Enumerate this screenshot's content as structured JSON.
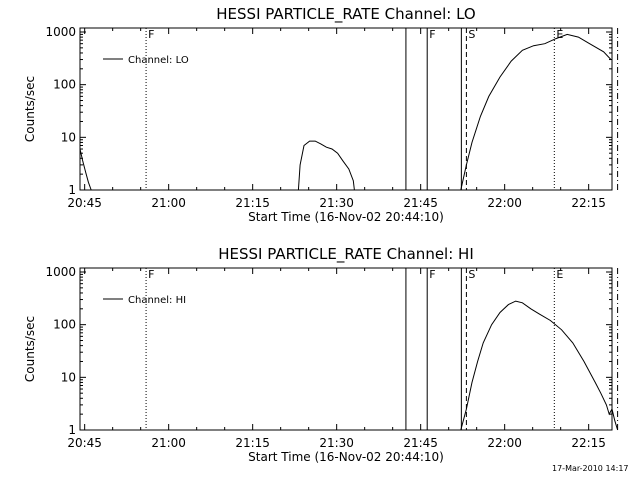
{
  "footer": {
    "timestamp": "17-Mar-2010 14:17"
  },
  "chart_data": [
    {
      "type": "line",
      "title": "HESSI PARTICLE_RATE Channel: LO",
      "xlabel": "Start Time (16-Nov-02 20:44:10)",
      "ylabel": "Counts/sec",
      "yscale": "log",
      "ylim": [
        1,
        1000
      ],
      "xlim_minutes": [
        0,
        95
      ],
      "x_ticks": [
        "20:45",
        "21:00",
        "21:15",
        "21:30",
        "21:45",
        "22:00",
        "22:15"
      ],
      "y_ticks": [
        "1",
        "10",
        "100",
        "1000"
      ],
      "legend": {
        "entries": [
          "Channel: LO"
        ],
        "placement": "top-left"
      },
      "series": [
        {
          "name": "Channel: LO",
          "color": "#000000",
          "segments": [
            [
              [
                0.0,
                6
              ],
              [
                0.5,
                3.5
              ],
              [
                1.0,
                2.2
              ],
              [
                1.5,
                1.4
              ],
              [
                2.0,
                1.0
              ]
            ],
            [
              [
                39.0,
                1.0
              ],
              [
                39.3,
                3.0
              ],
              [
                40.0,
                7.0
              ],
              [
                41.0,
                8.5
              ],
              [
                42.0,
                8.5
              ],
              [
                43.0,
                7.5
              ],
              [
                44.0,
                6.5
              ],
              [
                45.0,
                6.0
              ],
              [
                46.0,
                5.0
              ],
              [
                47.0,
                3.5
              ],
              [
                48.0,
                2.5
              ],
              [
                48.8,
                1.5
              ],
              [
                49.0,
                1.0
              ]
            ],
            [
              [
                68.0,
                1.0
              ],
              [
                69.0,
                3
              ],
              [
                70.0,
                8
              ],
              [
                71.5,
                25
              ],
              [
                73.0,
                60
              ],
              [
                75.0,
                140
              ],
              [
                77.0,
                280
              ],
              [
                79.0,
                450
              ],
              [
                81.0,
                550
              ],
              [
                83.0,
                600
              ],
              [
                85.0,
                750
              ],
              [
                87.0,
                900
              ],
              [
                89.0,
                800
              ],
              [
                91.0,
                600
              ],
              [
                93.5,
                420
              ],
              [
                94.8,
                300
              ]
            ]
          ]
        }
      ],
      "vertical_markers": [
        {
          "t": 11.8,
          "style": "dotted",
          "label": "F"
        },
        {
          "t": 58.2,
          "style": "solid",
          "label": ""
        },
        {
          "t": 62.0,
          "style": "solid",
          "label": "F"
        },
        {
          "t": 68.1,
          "style": "solid",
          "label": ""
        },
        {
          "t": 69.0,
          "style": "dashed",
          "label": "S"
        },
        {
          "t": 84.7,
          "style": "dotted",
          "label": "E"
        },
        {
          "t": 96.0,
          "style": "dashdot",
          "label": ""
        }
      ]
    },
    {
      "type": "line",
      "title": "HESSI PARTICLE_RATE Channel: HI",
      "xlabel": "Start Time (16-Nov-02 20:44:10)",
      "ylabel": "Counts/sec",
      "yscale": "log",
      "ylim": [
        1,
        1000
      ],
      "xlim_minutes": [
        0,
        95
      ],
      "x_ticks": [
        "20:45",
        "21:00",
        "21:15",
        "21:30",
        "21:45",
        "22:00",
        "22:15"
      ],
      "y_ticks": [
        "1",
        "10",
        "100",
        "1000"
      ],
      "legend": {
        "entries": [
          "Channel: HI"
        ],
        "placement": "top-left"
      },
      "series": [
        {
          "name": "Channel: HI",
          "color": "#000000",
          "segments": [
            [
              [
                68.0,
                1.0
              ],
              [
                69.0,
                2.5
              ],
              [
                70.0,
                8
              ],
              [
                71.0,
                20
              ],
              [
                72.0,
                45
              ],
              [
                73.5,
                100
              ],
              [
                75.0,
                170
              ],
              [
                76.5,
                240
              ],
              [
                77.8,
                280
              ],
              [
                79.0,
                260
              ],
              [
                80.5,
                200
              ],
              [
                82.0,
                160
              ],
              [
                84.0,
                120
              ],
              [
                86.0,
                80
              ],
              [
                88.0,
                45
              ],
              [
                90.0,
                20
              ],
              [
                92.0,
                8
              ],
              [
                93.0,
                5
              ],
              [
                94.0,
                3
              ],
              [
                94.5,
                2
              ],
              [
                95.0,
                2.5
              ],
              [
                95.5,
                1.5
              ],
              [
                96.0,
                1.0
              ]
            ]
          ]
        }
      ],
      "vertical_markers": [
        {
          "t": 11.8,
          "style": "dotted",
          "label": "F"
        },
        {
          "t": 58.2,
          "style": "solid",
          "label": ""
        },
        {
          "t": 62.0,
          "style": "solid",
          "label": "F"
        },
        {
          "t": 68.1,
          "style": "solid",
          "label": ""
        },
        {
          "t": 69.0,
          "style": "dashed",
          "label": "S"
        },
        {
          "t": 84.7,
          "style": "dotted",
          "label": "E"
        },
        {
          "t": 96.0,
          "style": "dashdot",
          "label": ""
        }
      ]
    }
  ]
}
